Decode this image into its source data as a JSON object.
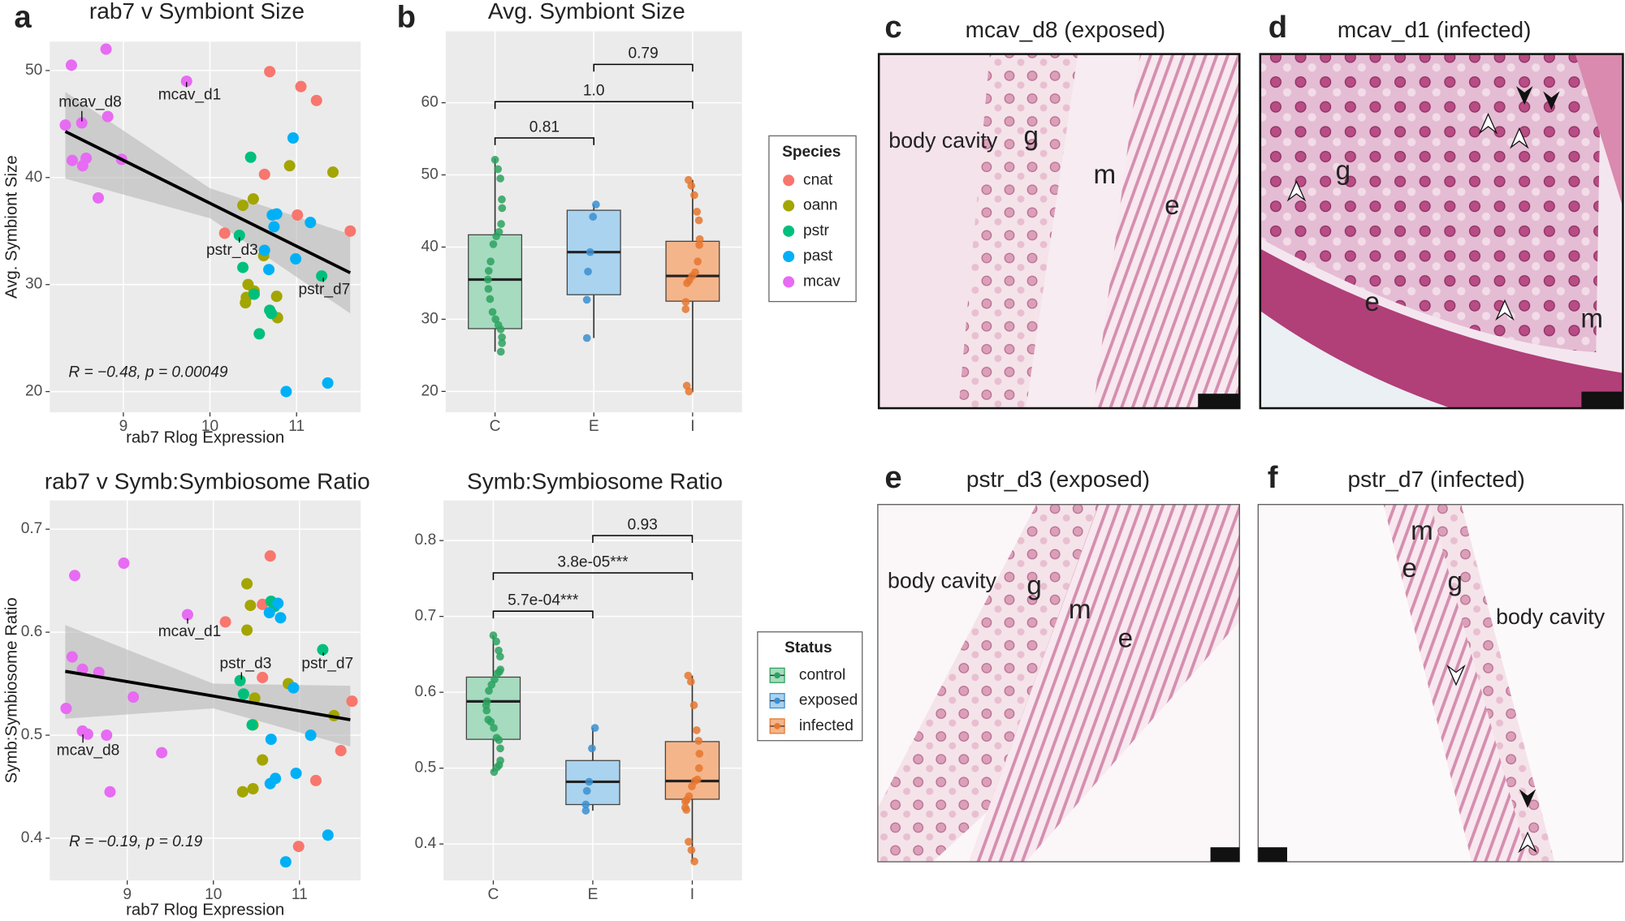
{
  "chart_data": [
    {
      "type": "scatter",
      "panel": "a",
      "title": "rab7 v Symbiont Size",
      "x_label": "rab7 Rlog Expression",
      "y_label": "Avg. Symbiont Size",
      "xlim": [
        8.15,
        11.74
      ],
      "ylim": [
        18.06,
        52.7
      ],
      "xticks": [
        9,
        10,
        11
      ],
      "yticks": [
        20,
        30,
        40,
        50
      ],
      "grid": true,
      "legend_title": "Species",
      "series": [
        {
          "name": "cnat",
          "color": "#f8766d",
          "x": [
            10.69,
            11.05,
            11.23,
            10.63,
            11.01,
            10.17,
            11.62
          ],
          "values": [
            49.9,
            48.5,
            47.2,
            40.3,
            36.5,
            34.8,
            35.0
          ]
        },
        {
          "name": "oann",
          "color": "#a3a500",
          "x": [
            10.92,
            11.42,
            10.5,
            10.38,
            10.62,
            10.44,
            10.51,
            10.42,
            10.41,
            10.77,
            10.78
          ],
          "values": [
            41.1,
            40.5,
            38.0,
            37.4,
            32.7,
            30.0,
            29.4,
            28.8,
            28.3,
            28.9,
            26.9
          ]
        },
        {
          "name": "pstr",
          "color": "#00bf7d",
          "x": [
            10.47,
            10.34,
            10.51,
            10.38,
            10.69,
            10.71,
            10.57,
            11.29
          ],
          "values": [
            41.9,
            34.6,
            29.1,
            31.6,
            27.6,
            27.3,
            25.4,
            30.8
          ]
        },
        {
          "name": "past",
          "color": "#00b0f6",
          "x": [
            10.96,
            11.16,
            10.77,
            10.72,
            10.74,
            10.63,
            10.99,
            10.68,
            10.88,
            11.36
          ],
          "values": [
            43.7,
            35.8,
            36.6,
            36.5,
            35.4,
            33.2,
            32.4,
            31.4,
            20.0,
            20.8
          ]
        },
        {
          "name": "mcav",
          "color": "#e76bf3",
          "x": [
            8.8,
            8.4,
            9.73,
            8.33,
            8.52,
            8.82,
            8.41,
            8.57,
            8.53,
            8.98,
            8.71
          ],
          "values": [
            52.0,
            50.5,
            49.0,
            44.9,
            45.1,
            45.7,
            41.6,
            41.8,
            41.1,
            41.7,
            38.1
          ]
        }
      ],
      "fit": {
        "x": [
          8.33,
          10.0,
          11.62
        ],
        "y": [
          44.3,
          37.6,
          31.1
        ],
        "upper": [
          48.0,
          39.0,
          34.7
        ],
        "lower": [
          39.9,
          36.2,
          27.3
        ]
      },
      "annotations": [
        "mcav_d8",
        "mcav_d1",
        "pstr_d3",
        "pstr_d7"
      ],
      "stat": "R = −0.48, p = 0.00049"
    },
    {
      "type": "box",
      "panel": "b",
      "title": "Avg. Symbiont Size",
      "ylim": [
        17.1,
        69.9
      ],
      "yticks": [
        20,
        30,
        40,
        50,
        60
      ],
      "grid": true,
      "categories": [
        "C",
        "E",
        "I"
      ],
      "legend_title": "Status",
      "boxes": [
        {
          "name": "control",
          "color": "#2ca25f",
          "fill": "#a6dbbf",
          "whisker_low": 25.5,
          "q1": 28.7,
          "median": 35.5,
          "q3": 41.7,
          "whisker_high": 52.3,
          "points": [
            52.1,
            50.8,
            49.5,
            46.6,
            45.4,
            43.2,
            42.1,
            41.5,
            40.4,
            38.0,
            36.7,
            35.5,
            34.2,
            32.8,
            31.0,
            30.0,
            29.2,
            28.6,
            27.5,
            26.7,
            25.5
          ]
        },
        {
          "name": "exposed",
          "color": "#3a8fd0",
          "fill": "#a9d3ef",
          "whisker_low": 27.4,
          "q1": 33.4,
          "median": 39.3,
          "q3": 45.1,
          "whisker_high": 45.9,
          "points": [
            45.9,
            44.2,
            39.3,
            36.6,
            32.7,
            27.4
          ]
        },
        {
          "name": "infected",
          "color": "#e5772f",
          "fill": "#f5b58a",
          "whisker_low": 19.9,
          "q1": 32.5,
          "median": 36.0,
          "q3": 40.8,
          "whisker_high": 49.3,
          "points": [
            49.3,
            48.5,
            47.2,
            44.9,
            43.7,
            41.1,
            40.3,
            38.0,
            36.5,
            36.0,
            35.4,
            35.0,
            32.4,
            31.4,
            20.8,
            20.0
          ]
        }
      ],
      "comparisons": [
        "0.81",
        "1.0",
        "0.79"
      ]
    },
    {
      "type": "scatter",
      "title": "rab7 v Symb:Symbiosome Ratio",
      "x_label": "rab7 Rlog Expression",
      "y_label": "Symb:Symbiosome Ratio",
      "xlim": [
        8.1,
        11.71
      ],
      "ylim": [
        0.359,
        0.728
      ],
      "xticks": [
        9,
        10,
        11
      ],
      "yticks": [
        0.4,
        0.5,
        0.6,
        0.7
      ],
      "grid": true,
      "series": [
        {
          "color": "#f8766d",
          "x": [
            10.66,
            10.14,
            10.57,
            10.57,
            11.61,
            11.48,
            11.19,
            10.99
          ],
          "values": [
            0.674,
            0.61,
            0.627,
            0.556,
            0.533,
            0.485,
            0.456,
            0.392
          ]
        },
        {
          "color": "#a3a500",
          "x": [
            10.39,
            10.43,
            10.39,
            10.87,
            10.48,
            11.4,
            10.46,
            10.57,
            10.34,
            10.46
          ],
          "values": [
            0.647,
            0.626,
            0.602,
            0.55,
            0.536,
            0.519,
            0.51,
            0.476,
            0.445,
            0.448
          ]
        },
        {
          "color": "#00bf7d",
          "x": [
            10.67,
            10.71,
            11.27,
            10.31,
            10.35,
            10.45
          ],
          "values": [
            0.63,
            0.625,
            0.583,
            0.553,
            0.54,
            0.51
          ]
        },
        {
          "color": "#00b0f6",
          "x": [
            10.75,
            10.65,
            10.78,
            10.93,
            11.13,
            10.67,
            10.96,
            10.72,
            10.66,
            11.33,
            10.84
          ],
          "values": [
            0.628,
            0.619,
            0.614,
            0.546,
            0.5,
            0.496,
            0.463,
            0.458,
            0.453,
            0.403,
            0.377
          ]
        },
        {
          "color": "#e76bf3",
          "x": [
            8.39,
            8.96,
            8.36,
            8.48,
            8.67,
            8.29,
            9.07,
            8.48,
            8.54,
            8.76,
            9.4,
            8.8,
            9.7
          ],
          "values": [
            0.655,
            0.667,
            0.576,
            0.564,
            0.561,
            0.526,
            0.537,
            0.504,
            0.501,
            0.5,
            0.483,
            0.445,
            0.617
          ]
        }
      ],
      "fit": {
        "x": [
          8.28,
          10.0,
          11.59
        ],
        "y": [
          0.562,
          0.538,
          0.515
        ],
        "upper": [
          0.607,
          0.55,
          0.548
        ],
        "lower": [
          0.516,
          0.526,
          0.489
        ]
      },
      "annotations": [
        "mcav_d1",
        "pstr_d3",
        "pstr_d7",
        "mcav_d8"
      ],
      "stat": "R = −0.19, p = 0.19"
    },
    {
      "type": "box",
      "title": "Symb:Symbiosome Ratio",
      "ylim": [
        0.352,
        0.853
      ],
      "yticks": [
        0.4,
        0.5,
        0.6,
        0.7,
        0.8
      ],
      "grid": true,
      "categories": [
        "C",
        "E",
        "I"
      ],
      "boxes": [
        {
          "color": "#2ca25f",
          "fill": "#a6dbbf",
          "whisker_low": 0.495,
          "q1": 0.538,
          "median": 0.588,
          "q3": 0.62,
          "whisker_high": 0.675,
          "points": [
            0.675,
            0.667,
            0.655,
            0.647,
            0.63,
            0.627,
            0.625,
            0.617,
            0.61,
            0.602,
            0.588,
            0.583,
            0.576,
            0.564,
            0.561,
            0.553,
            0.54,
            0.537,
            0.526,
            0.51,
            0.504,
            0.501,
            0.495
          ]
        },
        {
          "color": "#3a8fd0",
          "fill": "#a9d3ef",
          "whisker_low": 0.444,
          "q1": 0.452,
          "median": 0.482,
          "q3": 0.51,
          "whisker_high": 0.553,
          "points": [
            0.553,
            0.526,
            0.482,
            0.47,
            0.452,
            0.444
          ]
        },
        {
          "color": "#e5772f",
          "fill": "#f5b58a",
          "whisker_low": 0.377,
          "q1": 0.459,
          "median": 0.483,
          "q3": 0.535,
          "whisker_high": 0.622,
          "points": [
            0.622,
            0.614,
            0.583,
            0.55,
            0.536,
            0.519,
            0.5,
            0.485,
            0.483,
            0.476,
            0.463,
            0.458,
            0.456,
            0.448,
            0.445,
            0.403,
            0.392,
            0.377
          ]
        }
      ],
      "comparisons": [
        "5.7e-04***",
        "3.8e-05***",
        "0.93"
      ]
    }
  ],
  "micrographs": [
    {
      "panel": "c",
      "title": "mcav_d8 (exposed)",
      "labels": [
        "body cavity",
        "g",
        "m",
        "e"
      ]
    },
    {
      "panel": "d",
      "title": "mcav_d1 (infected)",
      "labels": [
        "g",
        "e",
        "m"
      ]
    },
    {
      "panel": "e",
      "title": "pstr_d3 (exposed)",
      "labels": [
        "body cavity",
        "g",
        "m",
        "e"
      ]
    },
    {
      "panel": "f",
      "title": "pstr_d7 (infected)",
      "labels": [
        "m",
        "e",
        "g",
        "body cavity"
      ]
    }
  ]
}
